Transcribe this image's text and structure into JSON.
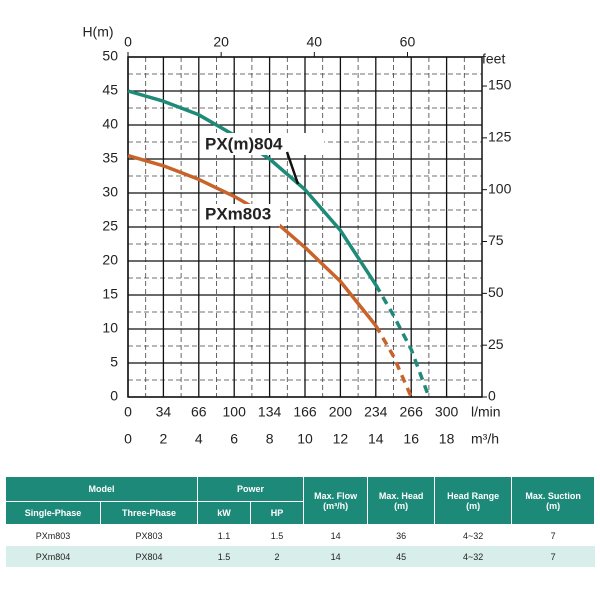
{
  "chart_data": {
    "type": "line",
    "y_label": "H(m)",
    "y2_label": "feet",
    "x_label": "m³/h",
    "x_lmin_label": "l/min",
    "xlim": [
      0,
      20
    ],
    "xticks": [
      0,
      2,
      4,
      6,
      8,
      10,
      12,
      14,
      16,
      18
    ],
    "x_lmin_ticks": [
      0,
      34,
      66,
      100,
      134,
      166,
      200,
      234,
      266,
      300
    ],
    "x2lim": [
      0,
      76
    ],
    "x2ticks": [
      0,
      20,
      40,
      60
    ],
    "ylim": [
      0,
      50
    ],
    "yticks": [
      0,
      5,
      10,
      15,
      20,
      25,
      30,
      35,
      40,
      45,
      50
    ],
    "y2lim": [
      0,
      164
    ],
    "y2ticks": [
      0,
      25,
      50,
      75,
      100,
      125,
      150
    ],
    "grid": true,
    "series": [
      {
        "name": "PX(m)804",
        "color": "#1e8a78",
        "dash_from_x": 14,
        "x": [
          0,
          2,
          4,
          6,
          8,
          10,
          12,
          14,
          15,
          16,
          17
        ],
        "values": [
          45,
          43.5,
          41.5,
          38.5,
          35,
          30.5,
          24.5,
          16.5,
          12,
          7,
          0
        ]
      },
      {
        "name": "PXm803",
        "color": "#c8642a",
        "dash_from_x": 14,
        "x": [
          0,
          2,
          4,
          6,
          8,
          10,
          12,
          14,
          15,
          16
        ],
        "values": [
          35.5,
          34,
          32,
          29.5,
          26.5,
          22,
          17,
          10.5,
          6,
          0
        ]
      }
    ]
  },
  "table": {
    "groups": [
      {
        "label": "Model",
        "sub": [
          "Single-Phase",
          "Three-Phase"
        ]
      },
      {
        "label": "Power",
        "sub": [
          "kW",
          "HP"
        ]
      }
    ],
    "columns": [
      {
        "label": "Max. Flow",
        "unit": "(m³/h)"
      },
      {
        "label": "Max. Head",
        "unit": "(m)"
      },
      {
        "label": "Head Range",
        "unit": "(m)"
      },
      {
        "label": "Max. Suction",
        "unit": "(m)"
      }
    ],
    "rows": [
      [
        "PXm803",
        "PX803",
        "1.1",
        "1.5",
        "14",
        "36",
        "4~32",
        "7"
      ],
      [
        "PXm804",
        "PX804",
        "1.5",
        "2",
        "14",
        "45",
        "4~32",
        "7"
      ]
    ]
  }
}
